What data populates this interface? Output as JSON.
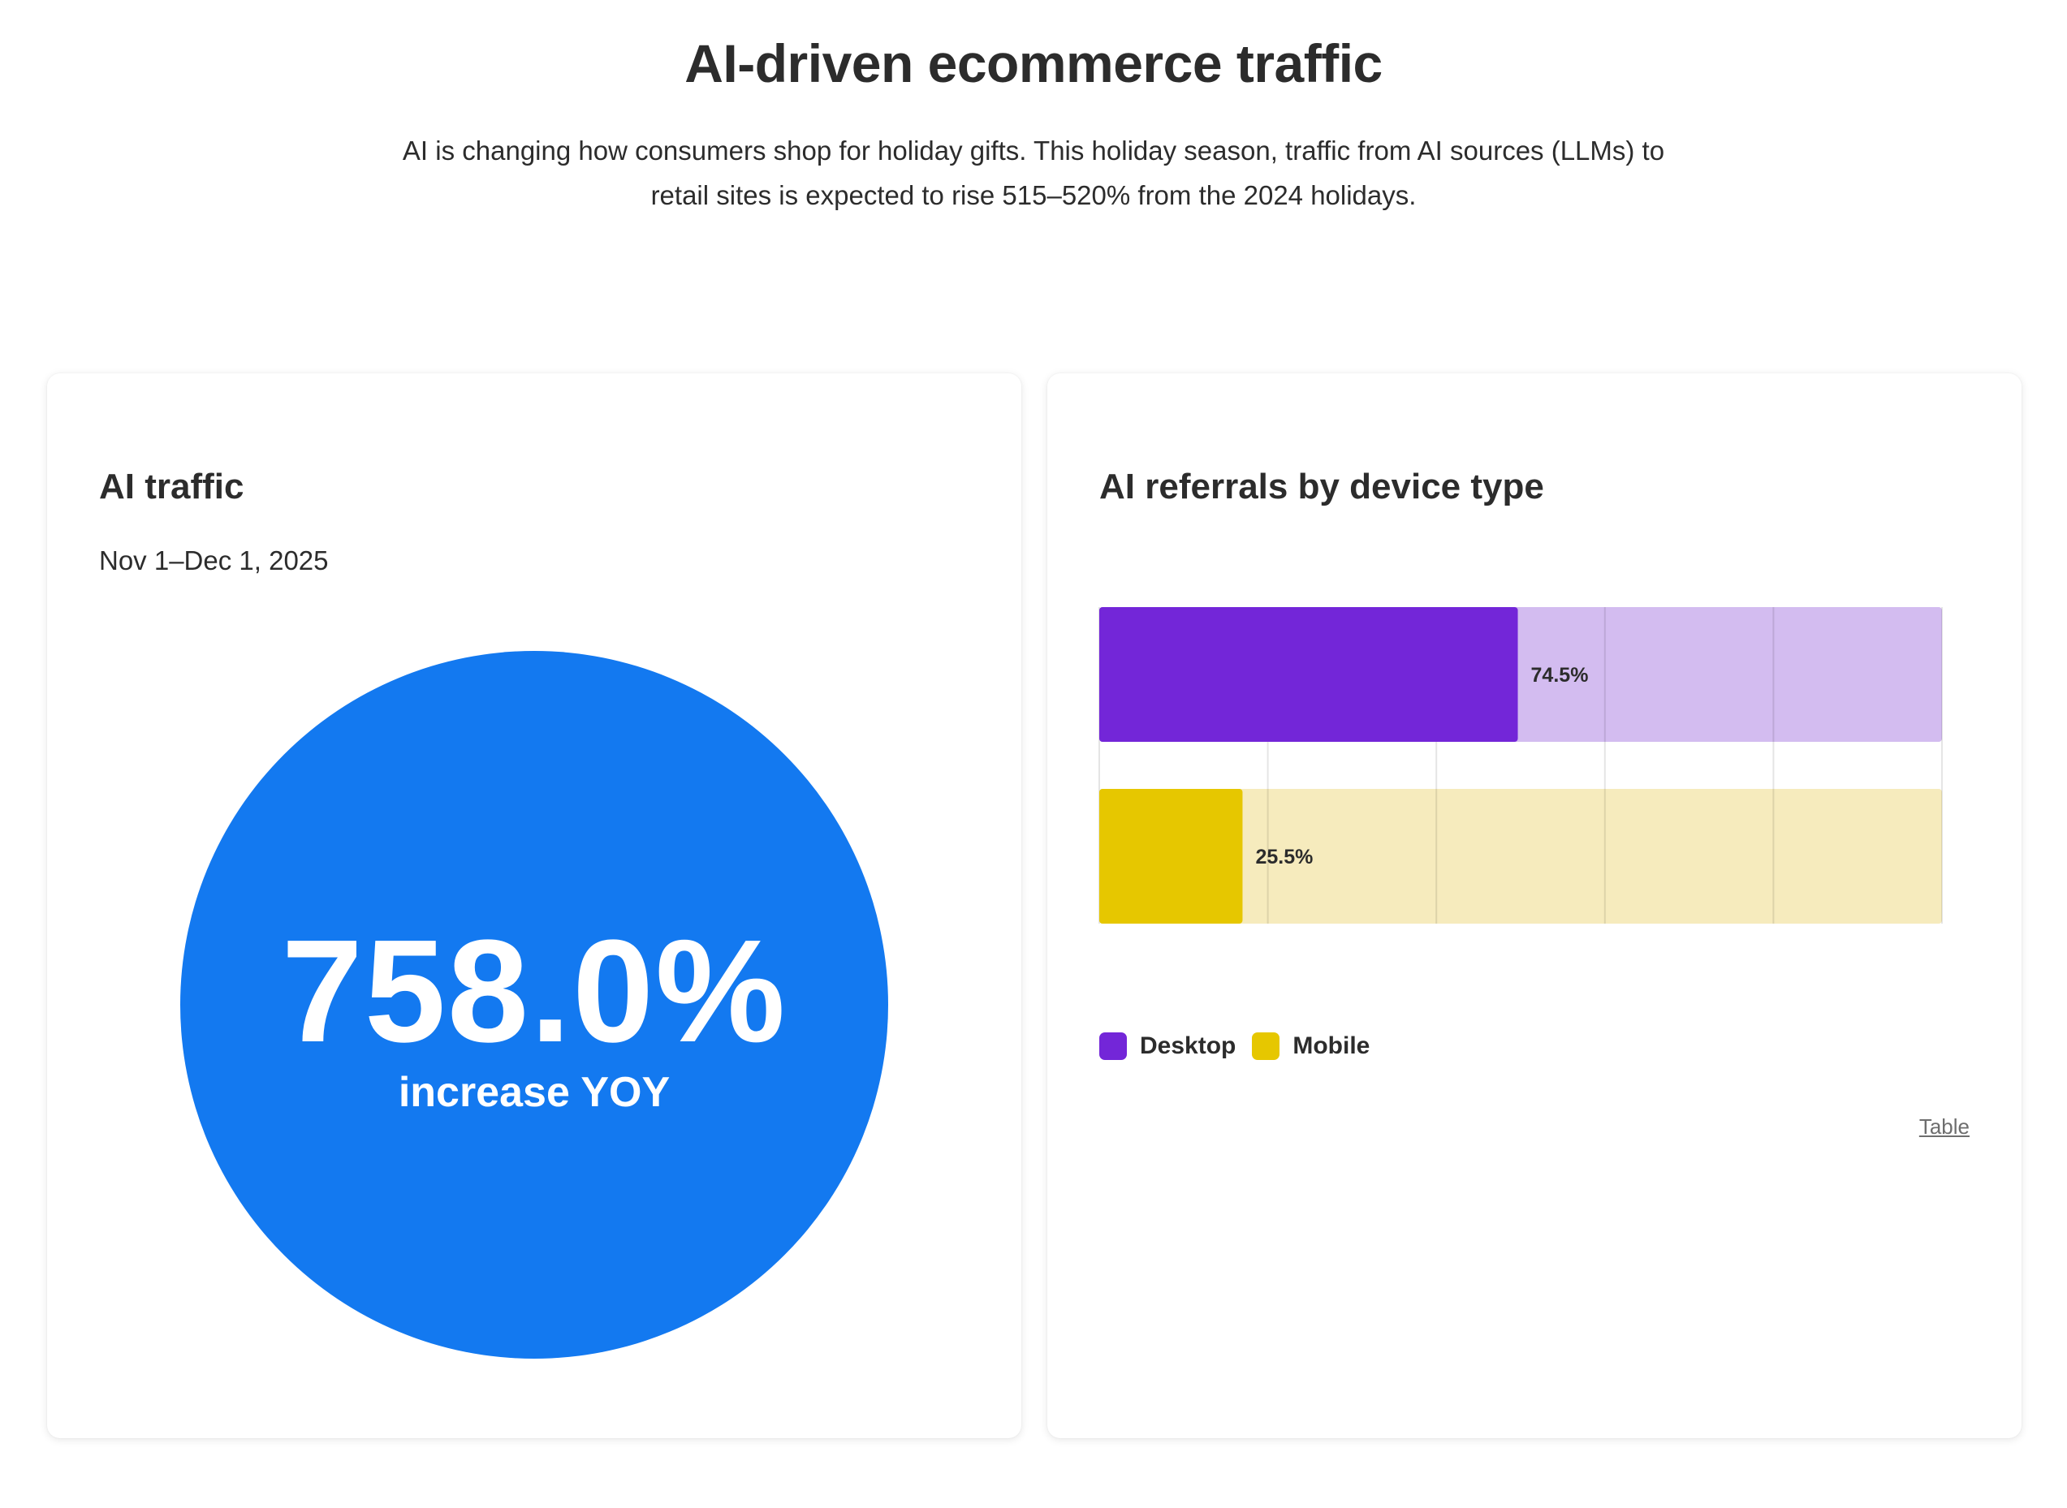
{
  "header": {
    "title": "AI-driven ecommerce traffic",
    "subtitle_line1": "AI is changing how consumers shop for holiday gifts. This holiday season, traffic from AI sources (LLMs) to",
    "subtitle_line2": "retail sites is expected to rise 515–520% from the 2024 holidays."
  },
  "ai_traffic": {
    "title": "AI traffic",
    "date_range": "Nov 1–Dec 1, 2025",
    "value": "758.0%",
    "caption": "increase YOY",
    "color": "#1379f0"
  },
  "device_card": {
    "title": "AI referrals by device type",
    "table_link": "Table"
  },
  "chart_data": {
    "type": "bar",
    "orientation": "horizontal",
    "title": "AI referrals by device type",
    "categories": [
      "Desktop",
      "Mobile"
    ],
    "values": [
      74.5,
      25.5
    ],
    "value_labels": [
      "74.5%",
      "25.5%"
    ],
    "colors": [
      "#7326d8",
      "#e6c700"
    ],
    "track_colors": [
      "#d3bcf0",
      "#f6ebbd"
    ],
    "xlim": [
      0,
      150
    ],
    "x_gridlines": [
      30,
      60,
      90,
      120
    ],
    "grid": true,
    "legend": {
      "position": "bottom-left",
      "items": [
        {
          "label": "Desktop",
          "color": "#7326d8"
        },
        {
          "label": "Mobile",
          "color": "#e6c700"
        }
      ]
    }
  }
}
